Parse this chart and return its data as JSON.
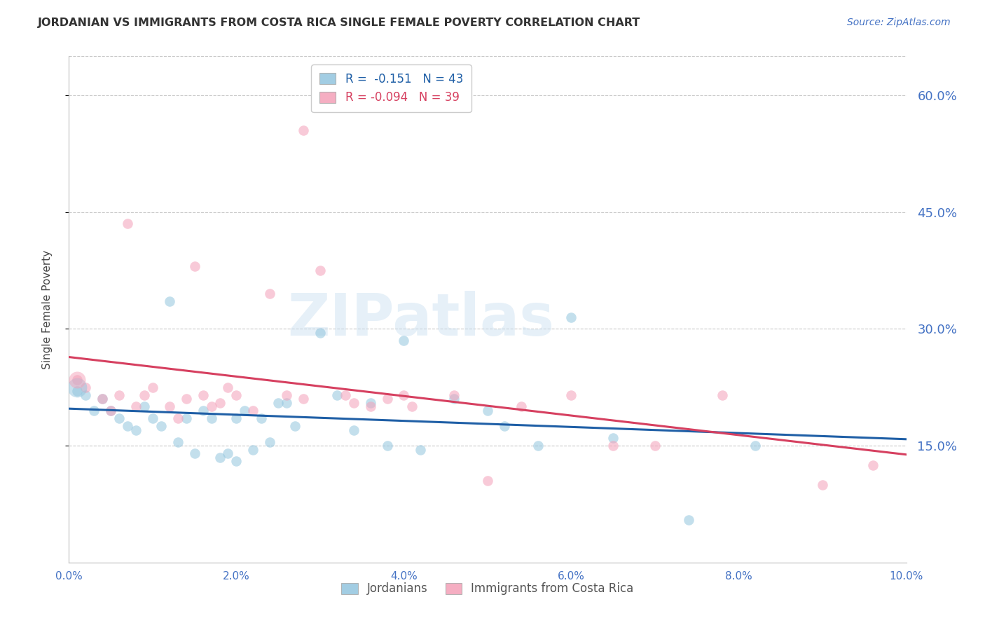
{
  "title": "JORDANIAN VS IMMIGRANTS FROM COSTA RICA SINGLE FEMALE POVERTY CORRELATION CHART",
  "source": "Source: ZipAtlas.com",
  "ylabel": "Single Female Poverty",
  "xlim": [
    0.0,
    0.1
  ],
  "ylim": [
    0.0,
    0.65
  ],
  "xticks": [
    0.0,
    0.02,
    0.04,
    0.06,
    0.08,
    0.1
  ],
  "yticks_right": [
    0.15,
    0.3,
    0.45,
    0.6
  ],
  "ytick_labels_right": [
    "15.0%",
    "30.0%",
    "45.0%",
    "60.0%"
  ],
  "xtick_labels": [
    "0.0%",
    "2.0%",
    "4.0%",
    "6.0%",
    "8.0%",
    "10.0%"
  ],
  "legend_r1": "R =  -0.151   N = 43",
  "legend_r2": "R = -0.094   N = 39",
  "legend_label1": "Jordanians",
  "legend_label2": "Immigrants from Costa Rica",
  "blue_color": "#92c5de",
  "pink_color": "#f4a0b8",
  "blue_line_color": "#1f5fa6",
  "pink_line_color": "#d64060",
  "axis_color": "#4472c4",
  "grid_color": "#c8c8c8",
  "watermark": "ZIPatlas",
  "blue_x": [
    0.001,
    0.002,
    0.003,
    0.004,
    0.005,
    0.006,
    0.007,
    0.008,
    0.009,
    0.01,
    0.011,
    0.012,
    0.013,
    0.014,
    0.015,
    0.016,
    0.017,
    0.018,
    0.019,
    0.02,
    0.021,
    0.022,
    0.023,
    0.024,
    0.025,
    0.026,
    0.027,
    0.03,
    0.032,
    0.034,
    0.036,
    0.038,
    0.04,
    0.042,
    0.046,
    0.05,
    0.052,
    0.056,
    0.06,
    0.065,
    0.074,
    0.082,
    0.02
  ],
  "blue_y": [
    0.22,
    0.215,
    0.195,
    0.21,
    0.195,
    0.185,
    0.175,
    0.17,
    0.2,
    0.185,
    0.175,
    0.335,
    0.155,
    0.185,
    0.14,
    0.195,
    0.185,
    0.135,
    0.14,
    0.185,
    0.195,
    0.145,
    0.185,
    0.155,
    0.205,
    0.205,
    0.175,
    0.295,
    0.215,
    0.17,
    0.205,
    0.15,
    0.285,
    0.145,
    0.21,
    0.195,
    0.175,
    0.15,
    0.315,
    0.16,
    0.055,
    0.15,
    0.13
  ],
  "pink_x": [
    0.001,
    0.002,
    0.004,
    0.005,
    0.006,
    0.007,
    0.008,
    0.009,
    0.01,
    0.012,
    0.013,
    0.014,
    0.015,
    0.016,
    0.017,
    0.018,
    0.019,
    0.02,
    0.022,
    0.024,
    0.026,
    0.028,
    0.03,
    0.033,
    0.034,
    0.036,
    0.038,
    0.04,
    0.041,
    0.046,
    0.05,
    0.054,
    0.06,
    0.065,
    0.07,
    0.078,
    0.09,
    0.096,
    0.028
  ],
  "pink_y": [
    0.235,
    0.225,
    0.21,
    0.195,
    0.215,
    0.435,
    0.2,
    0.215,
    0.225,
    0.2,
    0.185,
    0.21,
    0.38,
    0.215,
    0.2,
    0.205,
    0.225,
    0.215,
    0.195,
    0.345,
    0.215,
    0.21,
    0.375,
    0.215,
    0.205,
    0.2,
    0.21,
    0.215,
    0.2,
    0.215,
    0.105,
    0.2,
    0.215,
    0.15,
    0.15,
    0.215,
    0.1,
    0.125,
    0.555
  ]
}
